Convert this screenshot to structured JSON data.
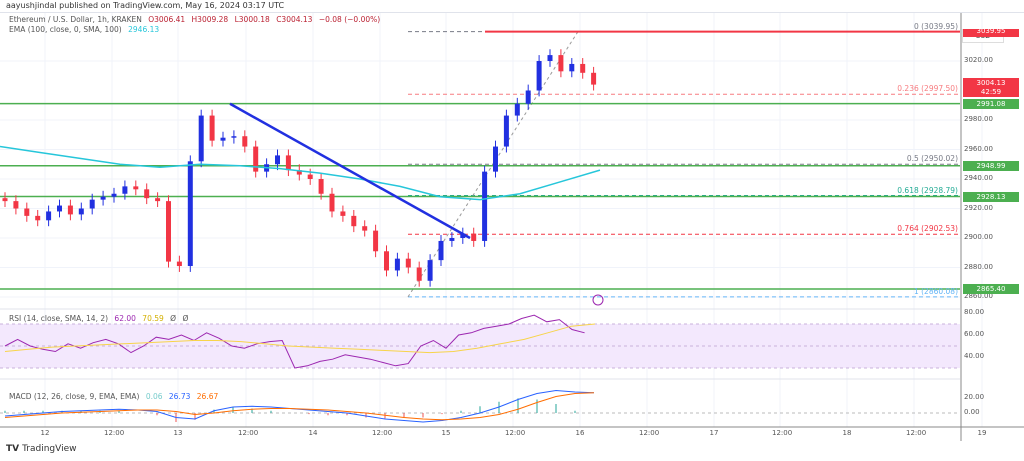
{
  "header": {
    "published": "aayushjindal published on TradingView.com, May 16, 2024 03:17 UTC"
  },
  "legend": {
    "symbol": "Ethereum / U.S. Dollar, 1h, KRAKEN",
    "o": "O3006.41",
    "h": "H3009.28",
    "l": "L3000.18",
    "c": "C3004.13",
    "chg": "−0.08 (−0.00%)",
    "ema_label": "EMA (100, close, 0, SMA, 100)",
    "ema_value": "2946.13"
  },
  "rsi_legend": {
    "label": "RSI (14, close, SMA, 14, 2)",
    "rsi": "62.00",
    "sma": "70.59",
    "x1": "Ø",
    "x2": "Ø"
  },
  "macd_legend": {
    "label": "MACD (12, 26, close, 9, EMA, EMA)",
    "hist": "0.06",
    "macd": "26.73",
    "signal": "26.67"
  },
  "currency": "USD",
  "footer": {
    "logo": "TradingView"
  },
  "colors": {
    "up": "#089981",
    "down": "#f23645",
    "green_line": "#4caf50",
    "trend": "#2130e0",
    "ema": "#26c6da",
    "rsi": "#9c27b0",
    "rsi_sma": "#f7d44a",
    "macd": "#2962ff",
    "signal": "#ff6d00"
  },
  "chart_data": {
    "type": "candlestick",
    "title": "Ethereum / U.S. Dollar, 1h, KRAKEN",
    "ylim": [
      2850,
      3050
    ],
    "closes": [
      2925,
      2920,
      2915,
      2912,
      2918,
      2922,
      2916,
      2920,
      2926,
      2928,
      2930,
      2935,
      2933,
      2927,
      2925,
      2884,
      2881,
      2952,
      2983,
      2966,
      2968,
      2969,
      2962,
      2945,
      2950,
      2956,
      2946,
      2943,
      2940,
      2930,
      2918,
      2915,
      2908,
      2905,
      2891,
      2878,
      2886,
      2880,
      2871,
      2885,
      2898,
      2900,
      2903,
      2898,
      2945,
      2962,
      2983,
      2991,
      3000,
      3020,
      3024,
      3013,
      3018,
      3012,
      3004
    ],
    "ema": [
      2962,
      2958,
      2954,
      2950,
      2948,
      2950,
      2949,
      2947,
      2944,
      2940,
      2935,
      2928,
      2926,
      2930,
      2938,
      2946
    ],
    "hlines": [
      {
        "price": 2991.08,
        "label": "2991.08"
      },
      {
        "price": 2948.99,
        "label": "2948.99"
      },
      {
        "price": 2928.13,
        "label": "2928.13"
      },
      {
        "price": 2865.4,
        "label": "2865.40"
      }
    ],
    "resistance": {
      "price": 3039.95,
      "label": "3039.95"
    },
    "last_price": {
      "price": 3004.13,
      "label": "3004.13",
      "countdown": "42:59"
    },
    "fib": [
      {
        "label": "0 (3039.95)",
        "price": 3039.95,
        "color": "#787b86"
      },
      {
        "label": "0.236 (2997.50)",
        "price": 2997.5,
        "color": "#f77c80"
      },
      {
        "label": "0.5 (2950.02)",
        "price": 2950.02,
        "color": "#787b86"
      },
      {
        "label": "0.618 (2928.79)",
        "price": 2928.79,
        "color": "#22ab94"
      },
      {
        "label": "0.764 (2902.53)",
        "price": 2902.53,
        "color": "#f23645"
      },
      {
        "label": "1 (2860.08)",
        "price": 2860.08,
        "color": "#64b5f6"
      }
    ],
    "price_ticks": [
      "3020.00",
      "2980.00",
      "2960.00",
      "2940.00",
      "2920.00",
      "2900.00",
      "2880.00",
      "2860.00"
    ],
    "rsi_ticks": [
      "80.00",
      "60.00",
      "40.00"
    ],
    "macd_ticks": [
      "20.00",
      "0.00"
    ],
    "time_ticks": [
      "12",
      "12:00",
      "13",
      "12:00",
      "14",
      "12:00",
      "15",
      "12:00",
      "16",
      "12:00",
      "17",
      "12:00",
      "18",
      "12:00",
      "19"
    ],
    "rsi": [
      50,
      56,
      50,
      47,
      45,
      52,
      48,
      53,
      56,
      52,
      44,
      50,
      58,
      56,
      60,
      55,
      62,
      57,
      50,
      48,
      52,
      54,
      55,
      30,
      32,
      36,
      38,
      42,
      40,
      38,
      35,
      32,
      34,
      50,
      55,
      48,
      60,
      62,
      66,
      68,
      70,
      75,
      78,
      72,
      74,
      65,
      62
    ],
    "rsi_sma": [
      45,
      47,
      49,
      50,
      51,
      52,
      53,
      54,
      55,
      55,
      54,
      52,
      50,
      49,
      48,
      47,
      46,
      45,
      44,
      45,
      48,
      52,
      56,
      62,
      68,
      70
    ],
    "macd": [
      -4,
      -2,
      0,
      2,
      3,
      4,
      5,
      4,
      2,
      -6,
      -8,
      3,
      8,
      9,
      8,
      6,
      4,
      2,
      0,
      -4,
      -8,
      -10,
      -12,
      -10,
      -6,
      0,
      8,
      18,
      26,
      30,
      28,
      27
    ],
    "signal": [
      -6,
      -4,
      -2,
      0,
      1,
      2,
      3,
      4,
      4,
      2,
      -2,
      0,
      3,
      5,
      6,
      6,
      5,
      4,
      2,
      0,
      -3,
      -6,
      -8,
      -9,
      -8,
      -6,
      -2,
      5,
      14,
      22,
      26,
      27
    ]
  }
}
